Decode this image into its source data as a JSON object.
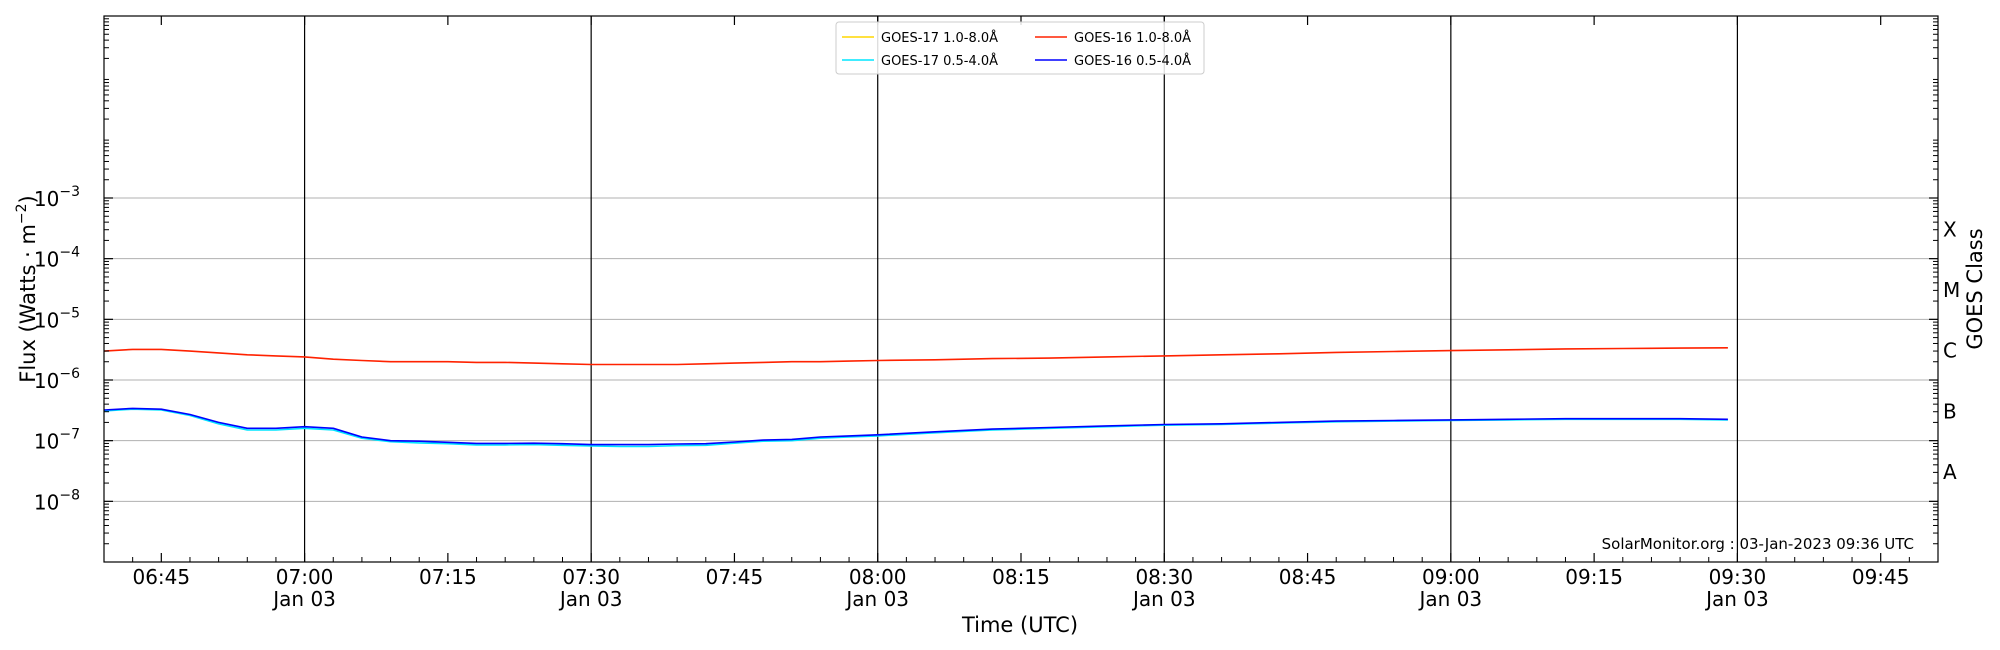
{
  "chart_data": {
    "type": "line",
    "xlabel": "Time (UTC)",
    "ylabel_main": "Flux (Watts · m",
    "ylabel_sup": "−2",
    "ylabel_close": ")",
    "y2label": "GOES Class",
    "credit": "SolarMonitor.org : 03-Jan-2023 09:36 UTC",
    "y_scale": "log",
    "ylim_exp": [
      -9,
      0
    ],
    "xlim": [
      "06:39",
      "09:51"
    ],
    "grid": "horizontal",
    "legend_position": "top-center",
    "y_ticks": [
      {
        "base": "10",
        "exp": "−8",
        "e": -8
      },
      {
        "base": "10",
        "exp": "−7",
        "e": -7
      },
      {
        "base": "10",
        "exp": "−6",
        "e": -6
      },
      {
        "base": "10",
        "exp": "−5",
        "e": -5
      },
      {
        "base": "10",
        "exp": "−4",
        "e": -4
      },
      {
        "base": "10",
        "exp": "−3",
        "e": -3
      }
    ],
    "class_labels": [
      {
        "label": "A",
        "e": -7.5
      },
      {
        "label": "B",
        "e": -6.5
      },
      {
        "label": "C",
        "e": -5.5
      },
      {
        "label": "M",
        "e": -4.5
      },
      {
        "label": "X",
        "e": -3.5
      }
    ],
    "x_ticks": [
      {
        "time": "06:45",
        "date": ""
      },
      {
        "time": "07:00",
        "date": "Jan 03"
      },
      {
        "time": "07:15",
        "date": ""
      },
      {
        "time": "07:30",
        "date": "Jan 03"
      },
      {
        "time": "07:45",
        "date": ""
      },
      {
        "time": "08:00",
        "date": "Jan 03"
      },
      {
        "time": "08:15",
        "date": ""
      },
      {
        "time": "08:30",
        "date": "Jan 03"
      },
      {
        "time": "08:45",
        "date": ""
      },
      {
        "time": "09:00",
        "date": "Jan 03"
      },
      {
        "time": "09:15",
        "date": ""
      },
      {
        "time": "09:30",
        "date": "Jan 03"
      },
      {
        "time": "09:45",
        "date": ""
      }
    ],
    "vlines": [
      "07:00",
      "07:30",
      "08:00",
      "08:30",
      "09:00",
      "09:30"
    ],
    "series": [
      {
        "name": "GOES-17 1.0-8.0Å",
        "color": "#ffd700",
        "x": [],
        "y": []
      },
      {
        "name": "GOES-17 0.5-4.0Å",
        "color": "#00e5ff",
        "x": [
          "06:39",
          "06:42",
          "06:45",
          "06:48",
          "06:51",
          "06:54",
          "06:57",
          "07:00",
          "07:03",
          "07:06",
          "07:09",
          "07:12",
          "07:15",
          "07:18",
          "07:21",
          "07:24",
          "07:27",
          "07:30",
          "07:33",
          "07:36",
          "07:39",
          "07:42",
          "07:45",
          "07:48",
          "07:51",
          "07:54",
          "07:57",
          "08:00",
          "08:06",
          "08:12",
          "08:18",
          "08:24",
          "08:30",
          "08:36",
          "08:42",
          "08:48",
          "08:54",
          "09:00",
          "09:06",
          "09:12",
          "09:18",
          "09:24",
          "09:29"
        ],
        "y": [
          3.1e-07,
          3.3e-07,
          3.2e-07,
          2.6e-07,
          1.9e-07,
          1.5e-07,
          1.5e-07,
          1.6e-07,
          1.5e-07,
          1.1e-07,
          9.6e-08,
          9.2e-08,
          8.9e-08,
          8.5e-08,
          8.5e-08,
          8.6e-08,
          8.4e-08,
          8.2e-08,
          8e-08,
          8e-08,
          8.3e-08,
          8.4e-08,
          9.1e-08,
          9.8e-08,
          1e-07,
          1.1e-07,
          1.15e-07,
          1.2e-07,
          1.35e-07,
          1.5e-07,
          1.6e-07,
          1.7e-07,
          1.8e-07,
          1.85e-07,
          1.95e-07,
          2.05e-07,
          2.1e-07,
          2.15e-07,
          2.2e-07,
          2.25e-07,
          2.25e-07,
          2.25e-07,
          2.2e-07
        ]
      },
      {
        "name": "GOES-16 1.0-8.0Å",
        "color": "#ff2200",
        "x": [
          "06:39",
          "06:42",
          "06:45",
          "06:48",
          "06:51",
          "06:54",
          "06:57",
          "07:00",
          "07:03",
          "07:06",
          "07:09",
          "07:12",
          "07:15",
          "07:18",
          "07:21",
          "07:24",
          "07:27",
          "07:30",
          "07:33",
          "07:36",
          "07:39",
          "07:42",
          "07:45",
          "07:48",
          "07:51",
          "07:54",
          "07:57",
          "08:00",
          "08:06",
          "08:12",
          "08:18",
          "08:24",
          "08:30",
          "08:36",
          "08:42",
          "08:48",
          "08:54",
          "09:00",
          "09:06",
          "09:12",
          "09:18",
          "09:24",
          "09:29"
        ],
        "y": [
          3e-06,
          3.2e-06,
          3.2e-06,
          3e-06,
          2.8e-06,
          2.6e-06,
          2.5e-06,
          2.4e-06,
          2.2e-06,
          2.1e-06,
          2e-06,
          2e-06,
          2e-06,
          1.95e-06,
          1.95e-06,
          1.9e-06,
          1.85e-06,
          1.8e-06,
          1.8e-06,
          1.8e-06,
          1.8e-06,
          1.85e-06,
          1.9e-06,
          1.95e-06,
          2e-06,
          2e-06,
          2.05e-06,
          2.1e-06,
          2.15e-06,
          2.25e-06,
          2.3e-06,
          2.4e-06,
          2.5e-06,
          2.6e-06,
          2.7e-06,
          2.85e-06,
          2.95e-06,
          3.05e-06,
          3.15e-06,
          3.25e-06,
          3.3e-06,
          3.35e-06,
          3.4e-06
        ]
      },
      {
        "name": "GOES-16 0.5-4.0Å",
        "color": "#0000ff",
        "x": [
          "06:39",
          "06:42",
          "06:45",
          "06:48",
          "06:51",
          "06:54",
          "06:57",
          "07:00",
          "07:03",
          "07:06",
          "07:09",
          "07:12",
          "07:15",
          "07:18",
          "07:21",
          "07:24",
          "07:27",
          "07:30",
          "07:33",
          "07:36",
          "07:39",
          "07:42",
          "07:45",
          "07:48",
          "07:51",
          "07:54",
          "07:57",
          "08:00",
          "08:06",
          "08:12",
          "08:18",
          "08:24",
          "08:30",
          "08:36",
          "08:42",
          "08:48",
          "08:54",
          "09:00",
          "09:06",
          "09:12",
          "09:18",
          "09:24",
          "09:29"
        ],
        "y": [
          3.2e-07,
          3.4e-07,
          3.3e-07,
          2.7e-07,
          2e-07,
          1.6e-07,
          1.6e-07,
          1.7e-07,
          1.6e-07,
          1.15e-07,
          1e-07,
          9.8e-08,
          9.4e-08,
          9e-08,
          9e-08,
          9.1e-08,
          8.9e-08,
          8.6e-08,
          8.6e-08,
          8.6e-08,
          8.8e-08,
          8.9e-08,
          9.5e-08,
          1.02e-07,
          1.05e-07,
          1.15e-07,
          1.2e-07,
          1.25e-07,
          1.4e-07,
          1.55e-07,
          1.65e-07,
          1.75e-07,
          1.85e-07,
          1.9e-07,
          2e-07,
          2.1e-07,
          2.15e-07,
          2.2e-07,
          2.25e-07,
          2.3e-07,
          2.3e-07,
          2.3e-07,
          2.25e-07
        ]
      }
    ]
  }
}
